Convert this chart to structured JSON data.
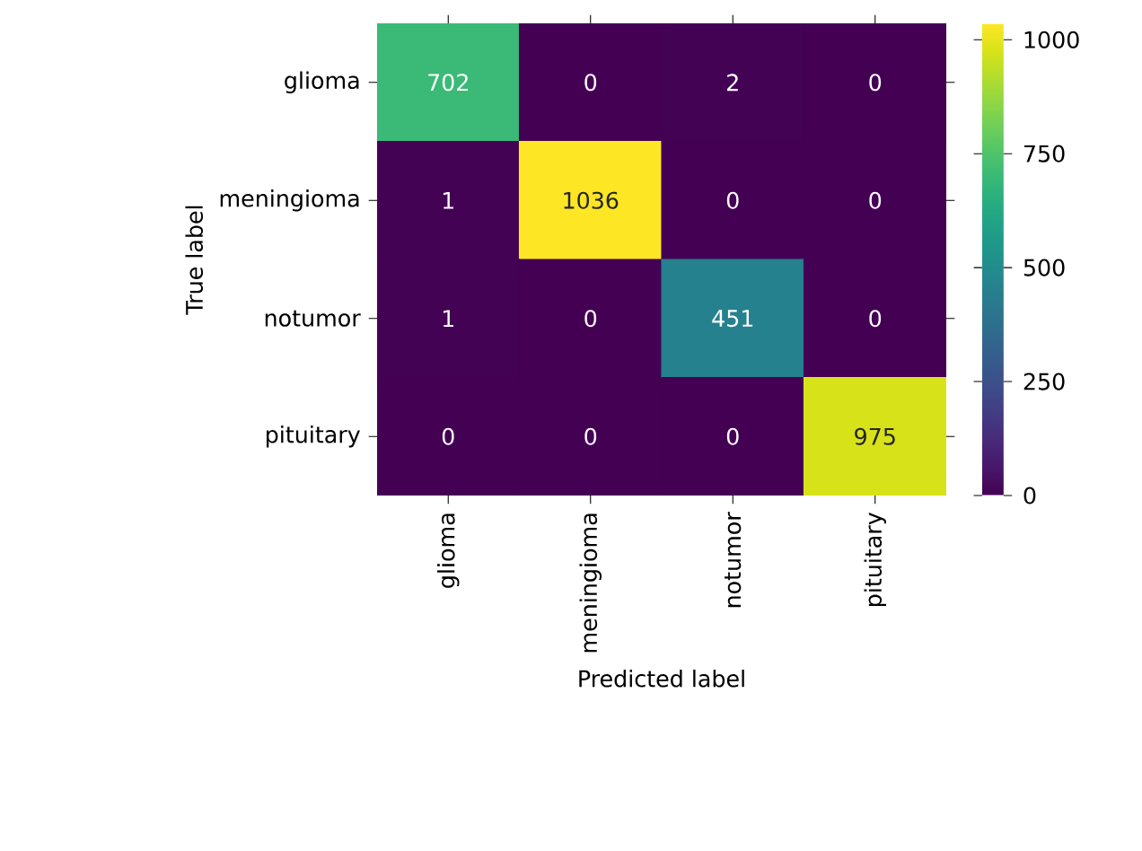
{
  "chart_data": {
    "type": "heatmap",
    "xlabel": "Predicted label",
    "ylabel": "True label",
    "categories": [
      "glioma",
      "meningioma",
      "notumor",
      "pituitary"
    ],
    "y_categories": [
      "glioma",
      "meningioma",
      "notumor",
      "pituitary"
    ],
    "cells": [
      [
        702,
        0,
        2,
        0
      ],
      [
        1,
        1036,
        0,
        0
      ],
      [
        1,
        0,
        451,
        0
      ],
      [
        0,
        0,
        0,
        975
      ]
    ],
    "data_labels": true,
    "clim": [
      0,
      1036
    ],
    "cticks": [
      0,
      250,
      500,
      750,
      1000
    ]
  }
}
